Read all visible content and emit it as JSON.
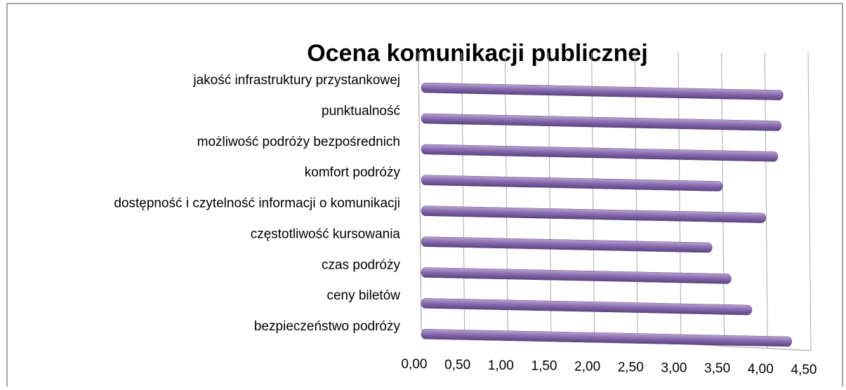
{
  "chart_data": {
    "type": "bar",
    "orientation": "horizontal",
    "title": "Ocena komunikacji publicznej",
    "categories": [
      "jakość infrastruktury przystankowej",
      "punktualność",
      "możliwość podróży bezpośrednich",
      "komfort podróży",
      "dostępność i czytelność informacji o komunikacji",
      "częstotliwość kursowania",
      "czas podróży",
      "ceny biletów",
      "bezpieczeństwo podróży"
    ],
    "values": [
      4.18,
      4.16,
      4.12,
      3.48,
      3.98,
      3.36,
      3.58,
      3.82,
      4.28
    ],
    "color": "#8064a2",
    "xlim": [
      0,
      4.5
    ],
    "xticks": [
      {
        "value": 0,
        "label": "0,00"
      },
      {
        "value": 0.5,
        "label": "0,50"
      },
      {
        "value": 1,
        "label": "1,00"
      },
      {
        "value": 1.5,
        "label": "1,50"
      },
      {
        "value": 2,
        "label": "2,00"
      },
      {
        "value": 2.5,
        "label": "2,50"
      },
      {
        "value": 3,
        "label": "3,00"
      },
      {
        "value": 3.5,
        "label": "3,50"
      },
      {
        "value": 4,
        "label": "4,00"
      },
      {
        "value": 4.5,
        "label": "4,50"
      }
    ],
    "grid": true
  }
}
